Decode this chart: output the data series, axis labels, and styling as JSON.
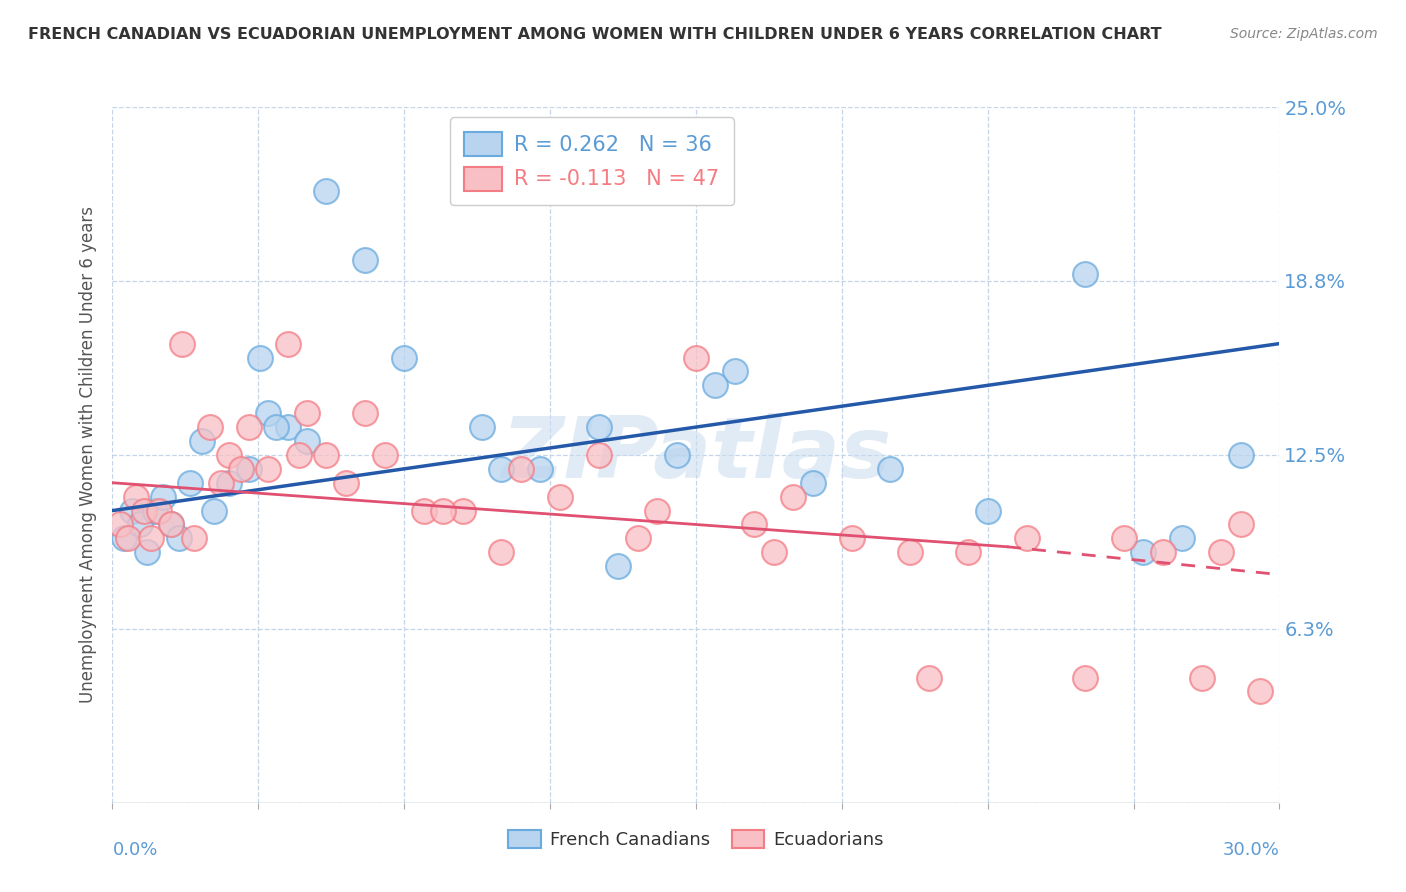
{
  "title": "FRENCH CANADIAN VS ECUADORIAN UNEMPLOYMENT AMONG WOMEN WITH CHILDREN UNDER 6 YEARS CORRELATION CHART",
  "source": "Source: ZipAtlas.com",
  "ylabel": "Unemployment Among Women with Children Under 6 years",
  "xlim": [
    0.0,
    30.0
  ],
  "ylim": [
    0.0,
    25.0
  ],
  "yticks": [
    0.0,
    6.25,
    12.5,
    18.75,
    25.0
  ],
  "ytick_labels": [
    "",
    "6.3%",
    "12.5%",
    "18.8%",
    "25.0%"
  ],
  "xtick_positions": [
    0.0,
    3.75,
    7.5,
    11.25,
    15.0,
    18.75,
    22.5,
    26.25,
    30.0
  ],
  "watermark": "ZIPatlas",
  "legend_blue_label": "R = 0.262   N = 36",
  "legend_pink_label": "R = -0.113   N = 47",
  "blue_color": "#5b9bd5",
  "pink_color": "#f47c82",
  "blue_line_color": "#2458a8",
  "pink_line_color": "#e05070",
  "background_color": "#ffffff",
  "grid_color": "#c5d5e8",
  "blue_scatter_x": [
    0.3,
    0.5,
    0.7,
    0.9,
    1.1,
    1.3,
    1.5,
    1.7,
    2.0,
    2.3,
    2.6,
    3.0,
    3.5,
    4.0,
    4.5,
    5.5,
    6.5,
    7.5,
    9.5,
    11.0,
    12.5,
    14.5,
    16.0,
    18.0,
    20.0,
    22.5,
    25.0,
    26.5,
    27.5,
    29.0,
    3.8,
    4.2,
    5.0,
    10.0,
    13.0,
    15.5
  ],
  "blue_scatter_y": [
    9.5,
    10.5,
    10.0,
    9.0,
    10.5,
    11.0,
    10.0,
    9.5,
    11.5,
    13.0,
    10.5,
    11.5,
    12.0,
    14.0,
    13.5,
    22.0,
    19.5,
    16.0,
    13.5,
    12.0,
    13.5,
    12.5,
    15.5,
    11.5,
    12.0,
    10.5,
    19.0,
    9.0,
    9.5,
    12.5,
    16.0,
    13.5,
    13.0,
    12.0,
    8.5,
    15.0
  ],
  "pink_scatter_x": [
    0.2,
    0.4,
    0.6,
    0.8,
    1.0,
    1.2,
    1.5,
    1.8,
    2.1,
    2.5,
    3.0,
    3.5,
    4.0,
    4.5,
    5.0,
    5.5,
    6.0,
    7.0,
    8.0,
    9.0,
    10.5,
    11.5,
    12.5,
    14.0,
    15.0,
    16.5,
    17.5,
    19.0,
    20.5,
    22.0,
    23.5,
    25.0,
    26.0,
    27.0,
    28.0,
    29.0,
    2.8,
    3.3,
    4.8,
    6.5,
    8.5,
    10.0,
    13.5,
    17.0,
    21.0,
    28.5,
    29.5
  ],
  "pink_scatter_y": [
    10.0,
    9.5,
    11.0,
    10.5,
    9.5,
    10.5,
    10.0,
    16.5,
    9.5,
    13.5,
    12.5,
    13.5,
    12.0,
    16.5,
    14.0,
    12.5,
    11.5,
    12.5,
    10.5,
    10.5,
    12.0,
    11.0,
    12.5,
    10.5,
    16.0,
    10.0,
    11.0,
    9.5,
    9.0,
    9.0,
    9.5,
    4.5,
    9.5,
    9.0,
    4.5,
    10.0,
    11.5,
    12.0,
    12.5,
    14.0,
    10.5,
    9.0,
    9.5,
    9.0,
    4.5,
    9.0,
    4.0
  ],
  "blue_line_y_start": 10.5,
  "blue_line_y_end": 16.5,
  "pink_line_y_start": 11.5,
  "pink_solid_x_end": 23.0,
  "pink_solid_y_end": 9.2,
  "pink_dash_x_end": 30.0,
  "pink_dash_y_end": 8.2
}
